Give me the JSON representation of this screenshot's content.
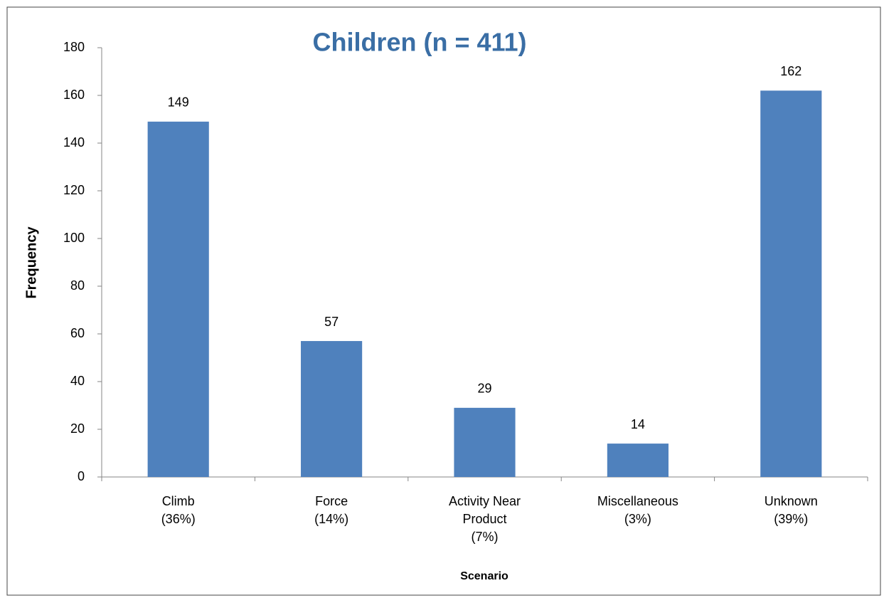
{
  "chart_data": {
    "type": "bar",
    "title": "Children (n = 411)",
    "x_label": "Scenario",
    "y_label": "Frequency",
    "categories": [
      [
        "Climb",
        "(36%)"
      ],
      [
        "Force",
        "(14%)"
      ],
      [
        "Activity Near",
        "Product",
        "(7%)"
      ],
      [
        "Miscellaneous",
        "(3%)"
      ],
      [
        "Unknown",
        "(39%)"
      ]
    ],
    "values": [
      149,
      57,
      29,
      14,
      162
    ],
    "color": "#4f81bd",
    "ylim": [
      0,
      180
    ],
    "yticks": [
      0,
      20,
      40,
      60,
      80,
      100,
      120,
      140,
      160,
      180
    ],
    "grid": false
  }
}
